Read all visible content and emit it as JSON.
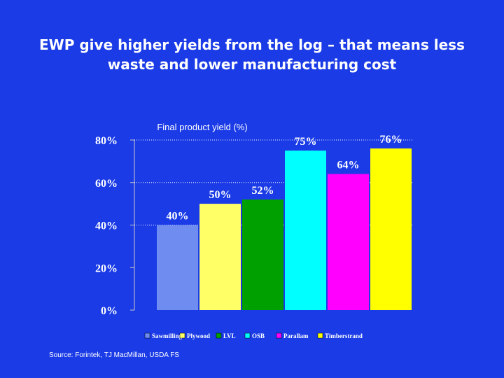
{
  "slide": {
    "title": "EWP give higher yields from the log – that means less waste and lower manufacturing cost",
    "source": "Source: Forintek, TJ MacMillan, USDA FS"
  },
  "chart_data": {
    "type": "bar",
    "title": "Final product yield (%)",
    "categories": [
      "Sawmilling",
      "Plywood",
      "LVL",
      "OSB",
      "Parallam",
      "Timberstrand"
    ],
    "values": [
      40,
      50,
      52,
      75,
      64,
      76
    ],
    "value_labels": [
      "40%",
      "50%",
      "52%",
      "75%",
      "64%",
      "76%"
    ],
    "colors": [
      "#6f8cf0",
      "#ffff66",
      "#00a000",
      "#00ffff",
      "#ff00ff",
      "#ffff00"
    ],
    "ylim": [
      0,
      80
    ],
    "yticks": [
      0,
      20,
      40,
      60,
      80
    ],
    "ytick_labels": [
      "0%",
      "20%",
      "40%",
      "60%",
      "80%"
    ],
    "gridlines": [
      40,
      60,
      80
    ],
    "legend_position": "bottom",
    "xlabel": "",
    "ylabel": ""
  }
}
